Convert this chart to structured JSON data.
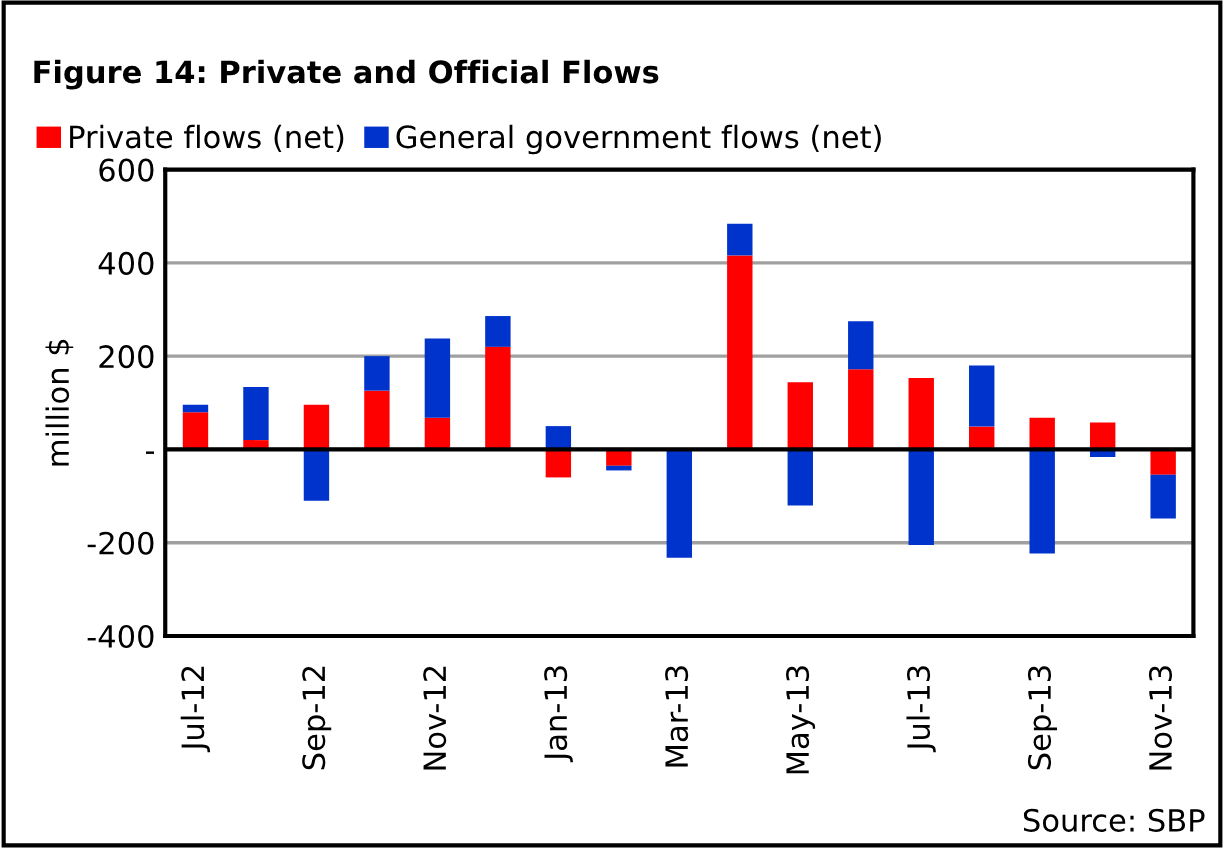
{
  "chart_data": {
    "type": "bar",
    "title": "Figure 14: Private and Official Flows",
    "ylabel": "million $",
    "categories": [
      "Jul-12",
      null,
      "Sep-12",
      null,
      "Nov-12",
      null,
      "Jan-13",
      null,
      "Mar-13",
      null,
      "May-13",
      null,
      "Jul-13",
      null,
      "Sep-13",
      null,
      "Nov-13"
    ],
    "series": [
      {
        "name": "Private flows (net)",
        "color": "#ff0000",
        "values": [
          80,
          20,
          96,
          126,
          68,
          220,
          -60,
          -35,
          0,
          416,
          144,
          172,
          153,
          49,
          68,
          58,
          -54
        ]
      },
      {
        "name": "General government flows (net)",
        "color": "#0033cc",
        "values": [
          16,
          114,
          -110,
          74,
          170,
          66,
          50,
          -10,
          -232,
          68,
          -120,
          103,
          -205,
          131,
          -223,
          -16,
          -94
        ]
      }
    ],
    "stacked": true,
    "ylim": [
      -400,
      600
    ],
    "yticks": [
      -400,
      -200,
      {
        "value": 0,
        "label": "-"
      },
      200,
      400,
      600
    ],
    "grid": "y",
    "legend": "top left",
    "annotations": [
      "Source: SBP"
    ]
  }
}
